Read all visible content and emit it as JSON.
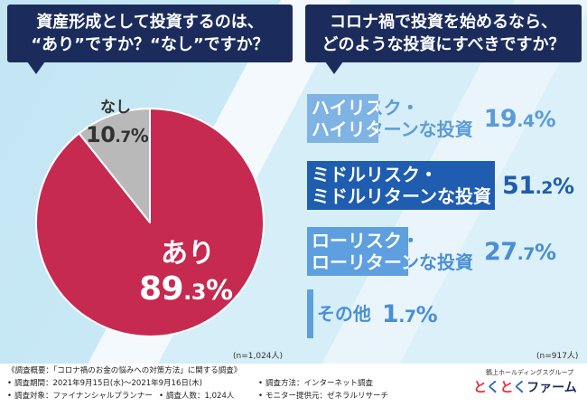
{
  "theme": {
    "bubble": "#1b2c5c",
    "bubble_text": "#ffffff"
  },
  "chart_data": [
    {
      "type": "pie",
      "title": [
        "資産形成として投資するのは、",
        "“あり”ですか？“なし”ですか？"
      ],
      "labels": [
        "あり",
        "なし"
      ],
      "values": [
        89.3,
        10.7
      ],
      "value_labels": [
        "89.3%",
        "10.7%"
      ],
      "colors": [
        "#c62a50",
        "#b9b9b9"
      ],
      "label_colors": [
        "#ffffff",
        "#333333"
      ],
      "note": "(n=1,024人)"
    },
    {
      "type": "bar",
      "orientation": "horizontal",
      "title": [
        "コロナ禍で投資を始めるなら、",
        "どのような投資にすべきですか？"
      ],
      "categories": [
        [
          "ハイリスク・",
          "ハイリターンな投資"
        ],
        [
          "ミドルリスク・",
          "ミドルリターンな投資"
        ],
        [
          "ローリスク・",
          "ローリターンな投資"
        ],
        [
          "その他"
        ]
      ],
      "values": [
        19.4,
        51.2,
        27.7,
        1.7
      ],
      "value_labels": [
        "19.4%",
        "51.2%",
        "27.7%",
        "1.7%"
      ],
      "colors": [
        "#7fb3e4",
        "#1f5db0",
        "#5e9fe0",
        "#5e9fe0"
      ],
      "label_colors": [
        "#5b9bd8",
        "#1f5db0",
        "#4a8ed6",
        "#4a8ed6"
      ],
      "note": "(n=917人)"
    }
  ],
  "survey": {
    "heading": "《調査概要：「コロナ禍のお金の悩みへの対策方法」に関する調査》",
    "period": "調査期間：2021年9月15日(水)～2021年9月16日(木)",
    "method": "調査方法：インターネット調査",
    "target": "調査対象：ファイナンシャルプランナー",
    "count": "調査人数：1,024人",
    "monitor": "モニター提供元：ゼネラルリサーチ"
  },
  "logo": {
    "group": "鶴上ホールディングスグループ",
    "mark": "とくとく",
    "word": "ファーム",
    "mark_colors": [
      "#e2313d",
      "#2b66c7"
    ],
    "word_color": "#1b2c5c"
  }
}
